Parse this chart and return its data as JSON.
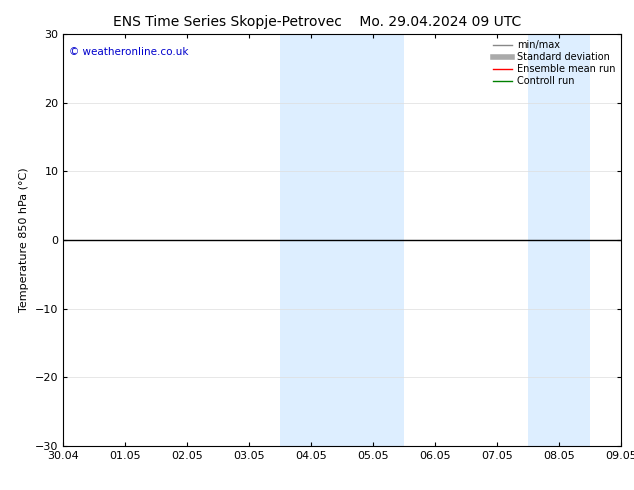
{
  "title_left": "ENS Time Series Skopje-Petrovec",
  "title_right": "Mo. 29.04.2024 09 UTC",
  "ylabel": "Temperature 850 hPa (°C)",
  "copyright": "© weatheronline.co.uk",
  "ylim": [
    -30,
    30
  ],
  "yticks": [
    -30,
    -20,
    -10,
    0,
    10,
    20,
    30
  ],
  "xtick_labels": [
    "30.04",
    "01.05",
    "02.05",
    "03.05",
    "04.05",
    "05.05",
    "06.05",
    "07.05",
    "08.05",
    "09.05"
  ],
  "n_xticks": 10,
  "xlim": [
    0,
    9
  ],
  "shaded_bands": [
    {
      "x_start": 3.5,
      "x_end": 4.5,
      "color": "#ddeeff"
    },
    {
      "x_start": 4.5,
      "x_end": 5.5,
      "color": "#ddeeff"
    },
    {
      "x_start": 7.5,
      "x_end": 8.5,
      "color": "#ddeeff"
    }
  ],
  "zero_line_color": "black",
  "zero_line_lw": 1.0,
  "legend_entries": [
    {
      "label": "min/max",
      "color": "#888888",
      "lw": 1.0,
      "style": "thin"
    },
    {
      "label": "Standard deviation",
      "color": "#aaaaaa",
      "lw": 4.0,
      "style": "thick"
    },
    {
      "label": "Ensemble mean run",
      "color": "red",
      "lw": 1.0,
      "style": "thin"
    },
    {
      "label": "Controll run",
      "color": "green",
      "lw": 1.0,
      "style": "thin"
    }
  ],
  "background_color": "#ffffff",
  "plot_bg_color": "#ffffff",
  "title_fontsize": 10,
  "axis_label_fontsize": 8,
  "tick_fontsize": 8,
  "copyright_color": "#0000cc",
  "copyright_fontsize": 7.5
}
